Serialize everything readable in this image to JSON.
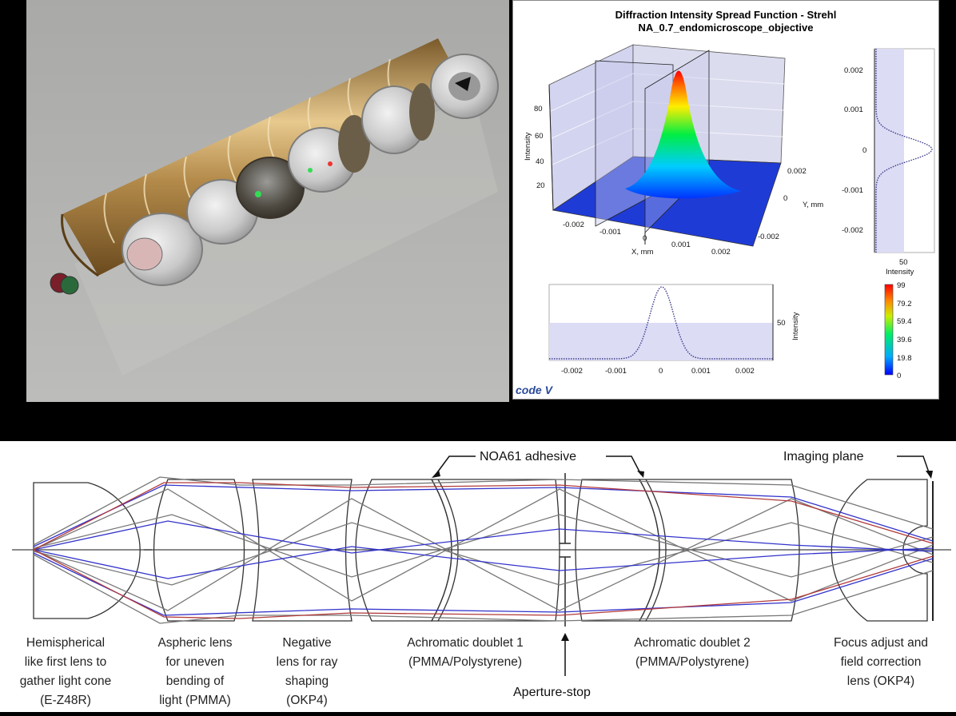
{
  "psf": {
    "title_line1": "Diffraction Intensity Spread Function - Strehl",
    "title_line2": "NA_0.7_endomicroscope_objective",
    "surface": {
      "z_axis_label": "Intensity",
      "z_ticks": [
        "80",
        "60",
        "40",
        "20"
      ],
      "x_axis_label": "X, mm",
      "x_ticks": [
        "-0.002",
        "-0.001",
        "0",
        "0.001",
        "0.002"
      ],
      "y_axis_label": "Y, mm",
      "y_ticks": [
        "0.002",
        "0",
        "-0.002"
      ]
    },
    "right_profile": {
      "y_ticks": [
        "0.002",
        "0.001",
        "0",
        "-0.001",
        "-0.002"
      ],
      "x_tick": "50",
      "x_label": "Intensity"
    },
    "bottom_profile": {
      "x_ticks": [
        "-0.002",
        "-0.001",
        "0",
        "0.001",
        "0.002"
      ],
      "y_tick": "50",
      "y_label": "Intensity"
    },
    "colorbar_ticks": [
      "99",
      "79.2",
      "59.4",
      "39.6",
      "19.8",
      "0"
    ],
    "logo_text": "code V",
    "colors": {
      "hot": "#ff0000",
      "mid": "#00ff00",
      "cold": "#0000ff"
    }
  },
  "layout": {
    "callouts": {
      "adhesive": "NOA61 adhesive",
      "imaging_plane": "Imaging plane",
      "aperture_stop": "Aperture-stop"
    },
    "lens_labels": [
      {
        "lines": [
          "Hemispherical",
          "like first lens to",
          "gather light cone",
          "(E-Z48R)"
        ]
      },
      {
        "lines": [
          "Aspheric lens",
          "for uneven",
          "bending of",
          "light (PMMA)"
        ]
      },
      {
        "lines": [
          "Negative",
          "lens for ray",
          "shaping",
          "(OKP4)"
        ]
      },
      {
        "lines": [
          "Achromatic doublet 1",
          "(PMMA/Polystyrene)"
        ]
      },
      {
        "lines": [
          "Achromatic doublet 2",
          "(PMMA/Polystyrene)"
        ]
      },
      {
        "lines": [
          "Focus adjust and",
          "field correction",
          "lens (OKP4)"
        ]
      }
    ],
    "ray_colors": {
      "red": "#b23a3a",
      "blue": "#3a3ac8",
      "gray": "#666666"
    }
  }
}
